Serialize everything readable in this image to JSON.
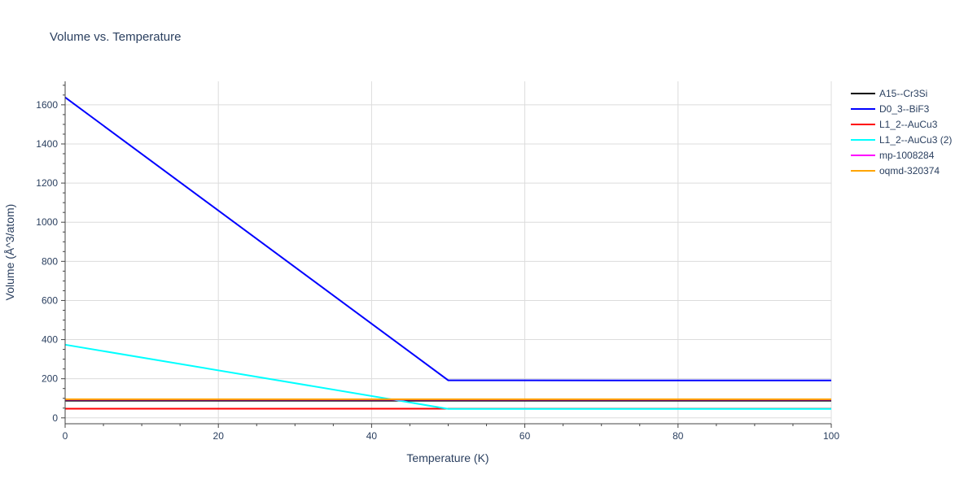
{
  "chart_data": {
    "type": "line",
    "title": "Volume vs. Temperature",
    "xlabel": "Temperature (K)",
    "ylabel": "Volume (Å^3/atom)",
    "xlim": [
      0,
      100
    ],
    "ylim": [
      -30,
      1720
    ],
    "x_ticks": [
      0,
      20,
      40,
      60,
      80,
      100
    ],
    "y_ticks": [
      0,
      200,
      400,
      600,
      800,
      1000,
      1200,
      1400,
      1600
    ],
    "grid": true,
    "legend_position": "top-right",
    "series": [
      {
        "name": "A15--Cr3Si",
        "color": "#000000",
        "x": [
          0,
          100
        ],
        "y": [
          88,
          88
        ]
      },
      {
        "name": "D0_3--BiF3",
        "color": "#0000ff",
        "x": [
          0,
          50,
          100
        ],
        "y": [
          1638,
          192,
          191
        ]
      },
      {
        "name": "L1_2--AuCu3",
        "color": "#ff0000",
        "x": [
          0,
          50,
          100
        ],
        "y": [
          47,
          47,
          47
        ]
      },
      {
        "name": "L1_2--AuCu3 (2)",
        "color": "#00ffff",
        "x": [
          0,
          50,
          100
        ],
        "y": [
          374,
          46,
          46
        ]
      },
      {
        "name": "mp-1008284",
        "color": "#ff00ff",
        "x": [
          0,
          100
        ],
        "y": [
          93,
          93
        ]
      },
      {
        "name": "oqmd-320374",
        "color": "#ffa500",
        "x": [
          0,
          100
        ],
        "y": [
          95,
          95
        ]
      }
    ]
  }
}
